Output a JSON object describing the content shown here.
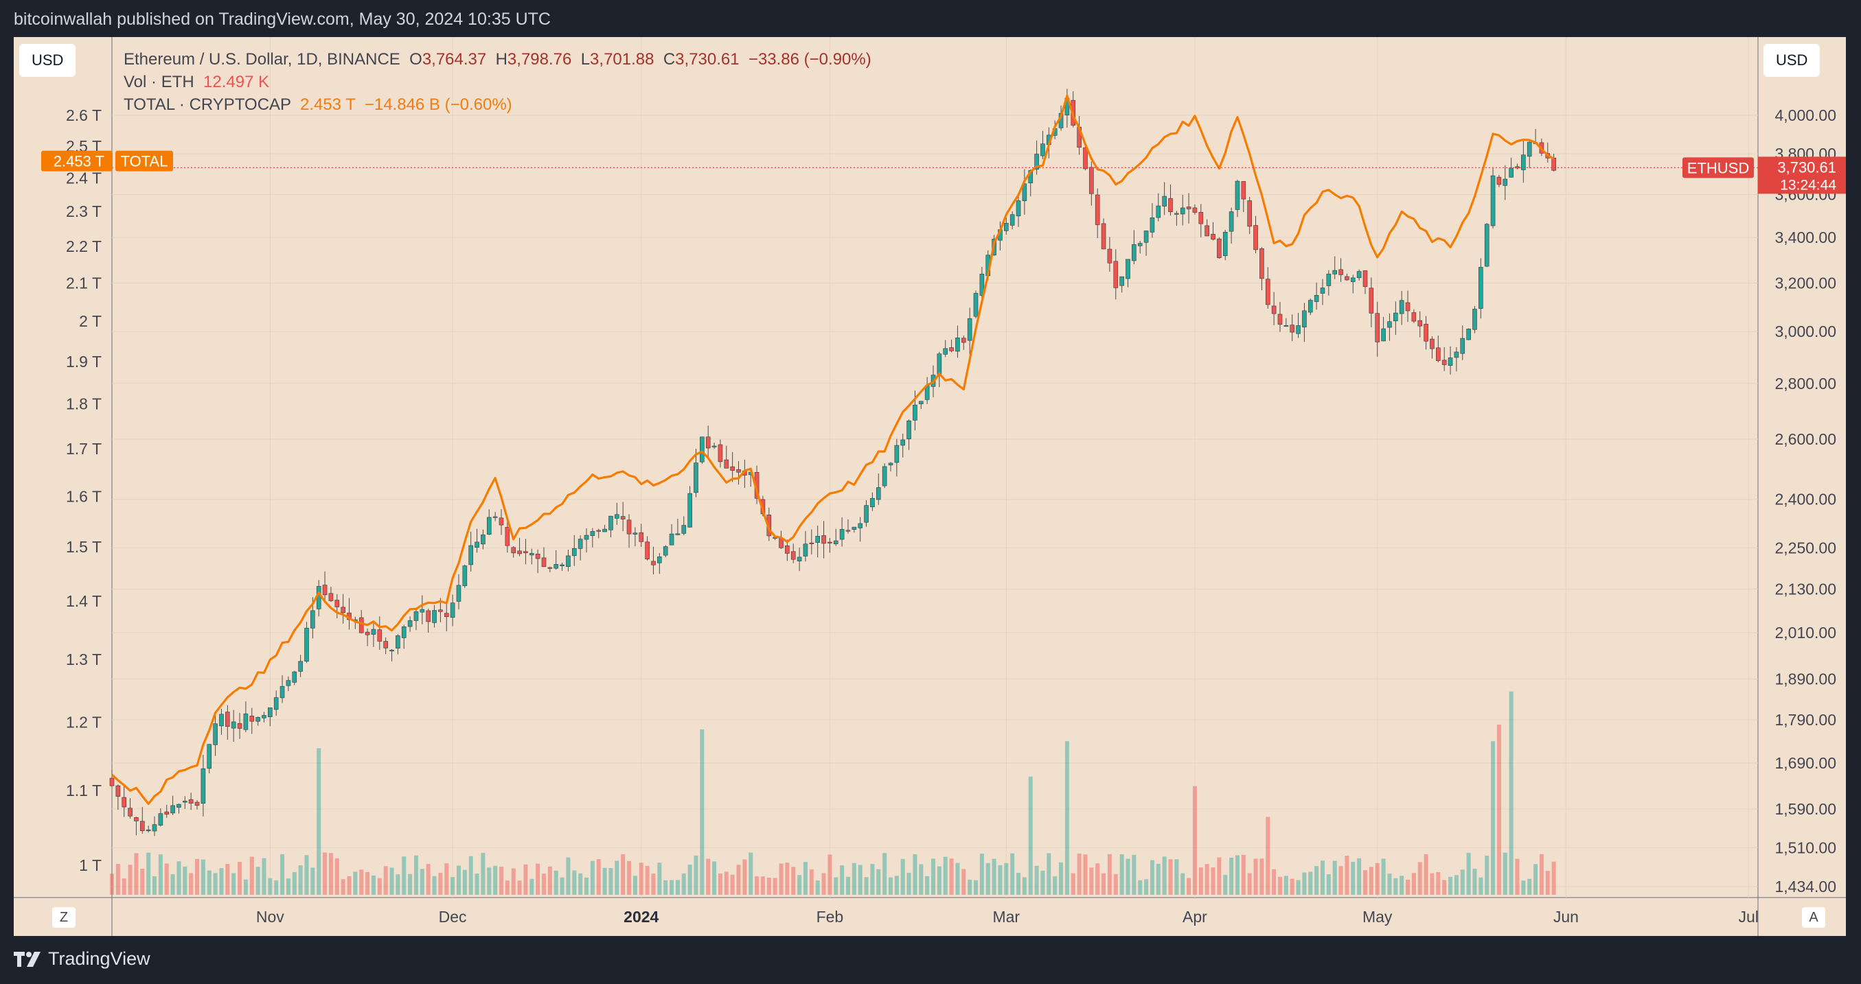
{
  "header": {
    "published": "bitcoinwallah published on TradingView.com, May 30, 2024 10:35 UTC"
  },
  "buttons": {
    "left_currency": "USD",
    "right_currency": "USD",
    "left_corner": "Z",
    "right_corner": "A"
  },
  "legend": {
    "row1": {
      "symbol": "Ethereum / U.S. Dollar, 1D, BINANCE",
      "o_label": "O",
      "o": "3,764.37",
      "h_label": "H",
      "h": "3,798.76",
      "l_label": "L",
      "l": "3,701.88",
      "c_label": "C",
      "c": "3,730.61",
      "change": "−33.86 (−0.90%)"
    },
    "row2": {
      "label": "Vol · ETH",
      "value": "12.497 K"
    },
    "row3": {
      "label": "TOTAL · CRYPTOCAP",
      "value": "2.453 T",
      "change": "−14.846 B (−0.60%)"
    }
  },
  "branding": {
    "name": "TradingView"
  },
  "colors": {
    "up": "#26a69a",
    "down": "#ef5350",
    "total_line": "#f57c00",
    "price_tag": "#e0463f",
    "total_tag": "#f57c00",
    "background": "#f2e0cf"
  },
  "chart_data": {
    "type": "candlestick",
    "symbol": "ETHUSD",
    "last_price_label": "3,730.61",
    "countdown_label": "13:24:44",
    "total_label": "TOTAL",
    "total_value_label": "2.453 T",
    "x_ticks": [
      "Nov",
      "Dec",
      "2024",
      "Feb",
      "Mar",
      "Apr",
      "May",
      "Jun",
      "Jul"
    ],
    "right_axis_ticks": [
      "4,000.00",
      "3,800.00",
      "3,600.00",
      "3,400.00",
      "3,200.00",
      "3,000.00",
      "2,800.00",
      "2,600.00",
      "2,400.00",
      "2,250.00",
      "2,130.00",
      "2,010.00",
      "1,890.00",
      "1,790.00",
      "1,690.00",
      "1,590.00",
      "1,510.00",
      "1,434.00"
    ],
    "left_axis_ticks": [
      "2.6 T",
      "2.5 T",
      "2.4 T",
      "2.3 T",
      "2.2 T",
      "2.1 T",
      "2 T",
      "1.9 T",
      "1.8 T",
      "1.7 T",
      "1.6 T",
      "1.5 T",
      "1.4 T",
      "1.3 T",
      "1.2 T",
      "1.1 T",
      "1 T"
    ],
    "right_axis": {
      "scale": "log",
      "range": [
        1420,
        4200
      ]
    },
    "left_axis": {
      "scale": "log",
      "unit": "T",
      "range": [
        0.96,
        2.7
      ]
    },
    "eth_close_keypoints": [
      [
        "2023-10-06",
        1640
      ],
      [
        "2023-10-09",
        1575
      ],
      [
        "2023-10-12",
        1545
      ],
      [
        "2023-10-16",
        1600
      ],
      [
        "2023-10-20",
        1605
      ],
      [
        "2023-10-23",
        1790
      ],
      [
        "2023-10-27",
        1785
      ],
      [
        "2023-10-31",
        1815
      ],
      [
        "2023-11-05",
        1895
      ],
      [
        "2023-11-09",
        2120
      ],
      [
        "2023-11-14",
        2050
      ],
      [
        "2023-11-21",
        1970
      ],
      [
        "2023-11-24",
        2060
      ],
      [
        "2023-11-30",
        2050
      ],
      [
        "2023-12-04",
        2240
      ],
      [
        "2023-12-08",
        2360
      ],
      [
        "2023-12-11",
        2230
      ],
      [
        "2023-12-18",
        2200
      ],
      [
        "2023-12-24",
        2300
      ],
      [
        "2023-12-28",
        2350
      ],
      [
        "2024-01-03",
        2210
      ],
      [
        "2024-01-08",
        2330
      ],
      [
        "2024-01-11",
        2600
      ],
      [
        "2024-01-15",
        2510
      ],
      [
        "2024-01-19",
        2480
      ],
      [
        "2024-01-22",
        2300
      ],
      [
        "2024-01-25",
        2220
      ],
      [
        "2024-01-31",
        2280
      ],
      [
        "2024-02-05",
        2300
      ],
      [
        "2024-02-10",
        2500
      ],
      [
        "2024-02-14",
        2650
      ],
      [
        "2024-02-19",
        2900
      ],
      [
        "2024-02-23",
        2970
      ],
      [
        "2024-02-28",
        3390
      ],
      [
        "2024-03-04",
        3620
      ],
      [
        "2024-03-07",
        3870
      ],
      [
        "2024-03-11",
        4060
      ],
      [
        "2024-03-15",
        3580
      ],
      [
        "2024-03-19",
        3160
      ],
      [
        "2024-03-22",
        3360
      ],
      [
        "2024-03-27",
        3560
      ],
      [
        "2024-04-01",
        3500
      ],
      [
        "2024-04-05",
        3330
      ],
      [
        "2024-04-08",
        3660
      ],
      [
        "2024-04-12",
        3210
      ],
      [
        "2024-04-14",
        3050
      ],
      [
        "2024-04-17",
        2980
      ],
      [
        "2024-04-20",
        3150
      ],
      [
        "2024-04-23",
        3220
      ],
      [
        "2024-04-28",
        3250
      ],
      [
        "2024-05-01",
        2980
      ],
      [
        "2024-05-05",
        3110
      ],
      [
        "2024-05-10",
        2920
      ],
      [
        "2024-05-13",
        2880
      ],
      [
        "2024-05-17",
        3090
      ],
      [
        "2024-05-20",
        3660
      ],
      [
        "2024-05-24",
        3730
      ],
      [
        "2024-05-27",
        3890
      ],
      [
        "2024-05-29",
        3765
      ],
      [
        "2024-05-30",
        3730.61
      ]
    ],
    "total_keypoints": [
      [
        "2023-10-06",
        1.12
      ],
      [
        "2023-10-10",
        1.1
      ],
      [
        "2023-10-12",
        1.08
      ],
      [
        "2023-10-16",
        1.12
      ],
      [
        "2023-10-20",
        1.14
      ],
      [
        "2023-10-23",
        1.22
      ],
      [
        "2023-10-27",
        1.25
      ],
      [
        "2023-10-31",
        1.28
      ],
      [
        "2023-11-05",
        1.35
      ],
      [
        "2023-11-09",
        1.41
      ],
      [
        "2023-11-14",
        1.37
      ],
      [
        "2023-11-21",
        1.35
      ],
      [
        "2023-11-24",
        1.39
      ],
      [
        "2023-11-30",
        1.4
      ],
      [
        "2023-12-04",
        1.55
      ],
      [
        "2023-12-08",
        1.63
      ],
      [
        "2023-12-11",
        1.52
      ],
      [
        "2023-12-18",
        1.58
      ],
      [
        "2023-12-24",
        1.64
      ],
      [
        "2023-12-28",
        1.65
      ],
      [
        "2024-01-03",
        1.62
      ],
      [
        "2024-01-08",
        1.66
      ],
      [
        "2024-01-11",
        1.7
      ],
      [
        "2024-01-15",
        1.63
      ],
      [
        "2024-01-19",
        1.65
      ],
      [
        "2024-01-22",
        1.53
      ],
      [
        "2024-01-25",
        1.51
      ],
      [
        "2024-01-31",
        1.6
      ],
      [
        "2024-02-05",
        1.63
      ],
      [
        "2024-02-10",
        1.7
      ],
      [
        "2024-02-14",
        1.8
      ],
      [
        "2024-02-19",
        1.87
      ],
      [
        "2024-02-23",
        1.84
      ],
      [
        "2024-02-28",
        2.2
      ],
      [
        "2024-03-04",
        2.4
      ],
      [
        "2024-03-07",
        2.45
      ],
      [
        "2024-03-11",
        2.66
      ],
      [
        "2024-03-15",
        2.45
      ],
      [
        "2024-03-19",
        2.39
      ],
      [
        "2024-03-22",
        2.42
      ],
      [
        "2024-03-27",
        2.53
      ],
      [
        "2024-04-01",
        2.59
      ],
      [
        "2024-04-05",
        2.43
      ],
      [
        "2024-04-08",
        2.6
      ],
      [
        "2024-04-12",
        2.35
      ],
      [
        "2024-04-14",
        2.22
      ],
      [
        "2024-04-17",
        2.2
      ],
      [
        "2024-04-20",
        2.32
      ],
      [
        "2024-04-23",
        2.37
      ],
      [
        "2024-04-28",
        2.32
      ],
      [
        "2024-05-01",
        2.16
      ],
      [
        "2024-05-05",
        2.3
      ],
      [
        "2024-05-10",
        2.22
      ],
      [
        "2024-05-13",
        2.2
      ],
      [
        "2024-05-17",
        2.34
      ],
      [
        "2024-05-20",
        2.53
      ],
      [
        "2024-05-24",
        2.51
      ],
      [
        "2024-05-27",
        2.51
      ],
      [
        "2024-05-29",
        2.47
      ],
      [
        "2024-05-30",
        2.453
      ]
    ],
    "volume_spikes_thousand_eth": [
      [
        "2023-11-09",
        620
      ],
      [
        "2024-01-11",
        700
      ],
      [
        "2024-03-05",
        500
      ],
      [
        "2024-03-11",
        650
      ],
      [
        "2024-04-01",
        460
      ],
      [
        "2024-04-13",
        330
      ],
      [
        "2024-05-20",
        650
      ],
      [
        "2024-05-21",
        720
      ],
      [
        "2024-05-23",
        860
      ]
    ]
  }
}
